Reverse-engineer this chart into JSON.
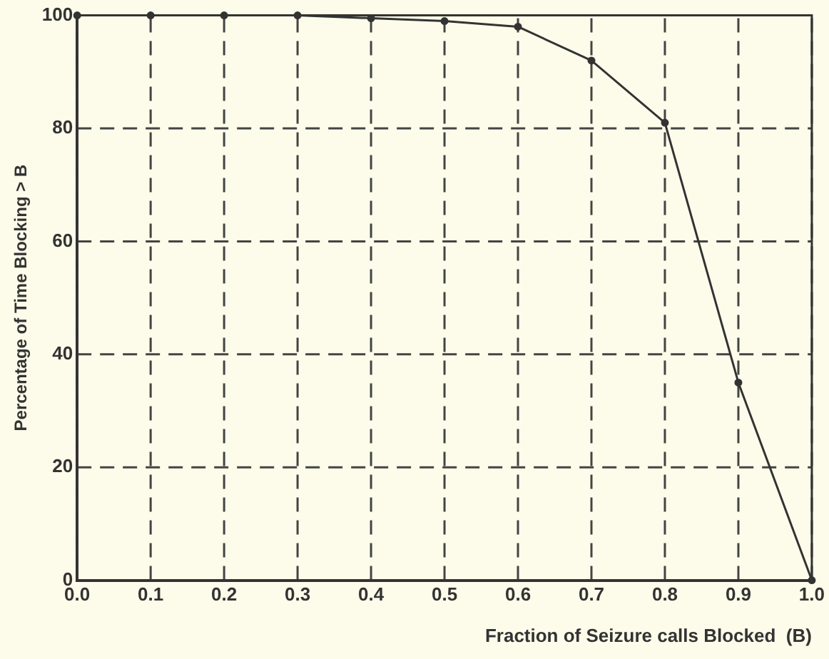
{
  "chart_data": {
    "type": "line",
    "xlabel": "Fraction of Seizure calls Blocked  (B)",
    "ylabel": "Percentage of Time Blocking > B",
    "x": [
      0,
      0.1,
      0.2,
      0.3,
      0.4,
      0.5,
      0.6,
      0.7,
      0.8,
      0.9,
      1.0
    ],
    "series": [
      {
        "color": "#333333",
        "values": [
          100,
          100,
          100,
          100,
          99.5,
          99,
          98,
          92,
          81,
          35,
          0
        ]
      }
    ],
    "xlim": [
      0,
      1
    ],
    "xticks": [
      {
        "value": 0,
        "label": "0.0"
      },
      {
        "value": 0.1,
        "label": "0.1"
      },
      {
        "value": 0.2,
        "label": "0.2"
      },
      {
        "value": 0.3,
        "label": "0.3"
      },
      {
        "value": 0.4,
        "label": "0.4"
      },
      {
        "value": 0.5,
        "label": "0.5"
      },
      {
        "value": 0.6,
        "label": "0.6"
      },
      {
        "value": 0.7,
        "label": "0.7"
      },
      {
        "value": 0.8,
        "label": "0.8"
      },
      {
        "value": 0.9,
        "label": "0.9"
      },
      {
        "value": 1,
        "label": "1.0"
      }
    ],
    "ylim": [
      0,
      100
    ],
    "yticks": [
      0,
      20,
      40,
      60,
      80,
      100
    ],
    "grid": true,
    "legend": false,
    "marker": "circle",
    "line_style": "solid"
  }
}
